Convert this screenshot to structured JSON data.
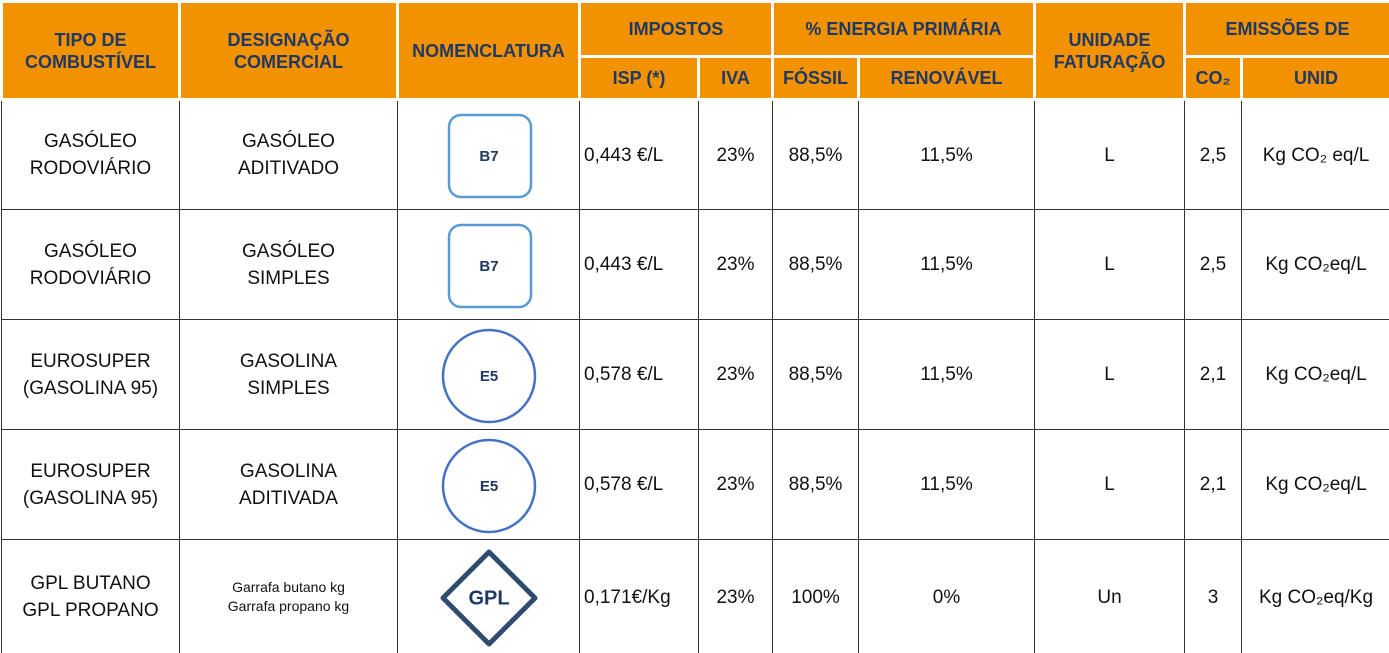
{
  "header": {
    "groups": [
      "TIPO DE\nCOMBUSTÍVEL",
      "DESIGNAÇÃO\nCOMERCIAL",
      "NOMENCLATURA",
      "IMPOSTOS",
      "% ENERGIA PRIMÁRIA",
      "UNIDADE\nFATURAÇÃO",
      "EMISSÕES DE"
    ],
    "subs": [
      "ISP (*)",
      "IVA",
      "FÓSSIL",
      "RENOVÁVEL",
      "CO₂",
      "UNID"
    ]
  },
  "table": {
    "rows": [
      [
        "GASÓLEO\nRODOVIÁRIO",
        "GASÓLEO\nADITIVADO",
        "B7",
        "0,443 €/L",
        "23%",
        "88,5%",
        "11,5%",
        "L",
        "2,5",
        "Kg CO₂ eq/L"
      ],
      [
        "GASÓLEO\nRODOVIÁRIO",
        "GASÓLEO\nSIMPLES",
        "B7",
        "0,443 €/L",
        "23%",
        "88,5%",
        "11,5%",
        "L",
        "2,5",
        "Kg CO₂eq/L"
      ],
      [
        "EUROSUPER\n(GASOLINA 95)",
        "GASOLINA\nSIMPLES",
        "E5",
        "0,578 €/L",
        "23%",
        "88,5%",
        "11,5%",
        "L",
        "2,1",
        "Kg CO₂eq/L"
      ],
      [
        "EUROSUPER\n(GASOLINA 95)",
        "GASOLINA\nADITIVADA",
        "E5",
        "0,578 €/L",
        "23%",
        "88,5%",
        "11,5%",
        "L",
        "2,1",
        "Kg CO₂eq/L"
      ],
      [
        "GPL BUTANO\nGPL PROPANO",
        "Garrafa butano  kg\nGarrafa propano  kg",
        "GPL",
        "0,171€/Kg",
        "23%",
        "100%",
        "0%",
        "Un",
        "3",
        "Kg CO₂eq/Kg"
      ]
    ]
  }
}
